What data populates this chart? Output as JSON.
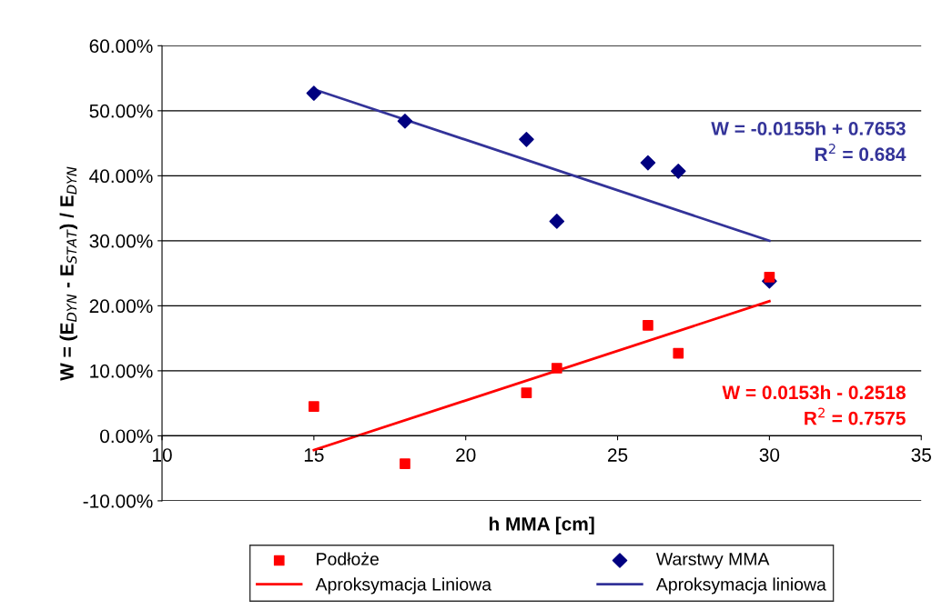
{
  "chart_data": {
    "type": "scatter",
    "xlabel": "h MMA [cm]",
    "ylabel": "W = (E$_{DYN}$ - E$_{STAT}$) / E$_{DYN}$",
    "xlim": [
      10,
      35
    ],
    "xticks": [
      10,
      15,
      20,
      25,
      30,
      35
    ],
    "ylim": [
      -0.1,
      0.6
    ],
    "yticks": [
      {
        "value": -0.1,
        "label": "-10.00%"
      },
      {
        "value": 0,
        "label": "0.00%"
      },
      {
        "value": 0.1,
        "label": "10.00%"
      },
      {
        "value": 0.2,
        "label": "20.00%"
      },
      {
        "value": 0.3,
        "label": "30.00%"
      },
      {
        "value": 0.4,
        "label": "40.00%"
      },
      {
        "value": 0.5,
        "label": "50.00%"
      },
      {
        "value": 0.6,
        "label": "60.00%"
      }
    ],
    "grid": "y",
    "legend": "bottom",
    "series": [
      {
        "name": "Podłoże",
        "marker": "square",
        "color": "#ff0000",
        "x": [
          15,
          18,
          22,
          23,
          26,
          27,
          30
        ],
        "values": [
          0.045,
          -0.043,
          0.066,
          0.104,
          0.17,
          0.127,
          0.244
        ]
      },
      {
        "name": "Warstwy MMA",
        "marker": "diamond",
        "color": "#000080",
        "x": [
          15,
          18,
          22,
          23,
          26,
          27,
          30
        ],
        "values": [
          0.527,
          0.484,
          0.456,
          0.33,
          0.42,
          0.407,
          0.238
        ]
      },
      {
        "name": "Aproksymacja Liniowa",
        "type": "line",
        "marker": "none",
        "color": "#ff0000",
        "x": [
          15,
          30
        ],
        "values": [
          -0.022,
          0.207
        ]
      },
      {
        "name": "Aproksymacja liniowa",
        "type": "line",
        "marker": "none",
        "color": "#333399",
        "x": [
          15,
          30
        ],
        "values": [
          0.533,
          0.3
        ]
      }
    ],
    "annotations": [
      "W = -0.0155h + 0.7653\nR$^{2}$ = 0.684",
      "W = 0.0153h - 0.2518\nR$^{2}$ = 0.7575"
    ]
  }
}
